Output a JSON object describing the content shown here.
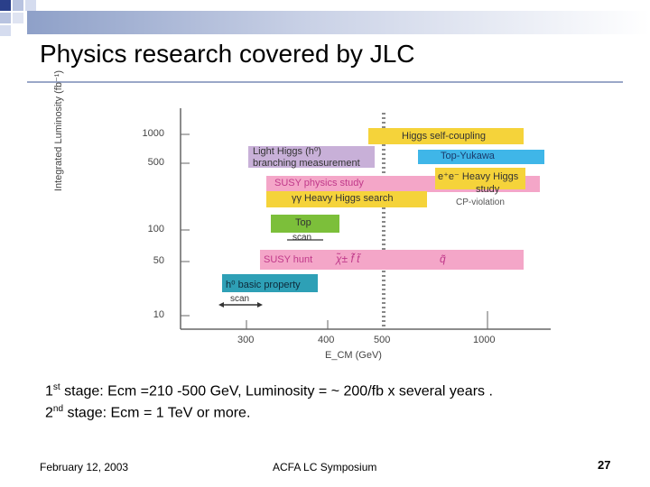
{
  "slide": {
    "title": "Physics research covered by JLC",
    "stage1": {
      "ordinal": "1",
      "suffix": "st",
      "text": "stage: Ecm =210 -500 GeV,   Luminosity = ~ 200/fb x several years ."
    },
    "stage2": {
      "ordinal": "2",
      "suffix": "nd",
      "text": "  stage: Ecm = 1 TeV or more."
    },
    "date": "February 12, 2003",
    "event": "ACFA LC Symposium",
    "page": "27"
  },
  "figure": {
    "y_axis_label": "Integrated Luminosity (fb⁻¹)",
    "x_axis_label": "E_CM (GeV)",
    "y_ticks": [
      "1000",
      "500",
      "100",
      "50",
      "10"
    ],
    "x_ticks": [
      "300",
      "400",
      "500",
      "1000"
    ],
    "boxes": {
      "higgs_self": "Higgs self-coupling",
      "top_yukawa": "Top-Yukawa",
      "light_higgs_1": "Light Higgs (h⁰)",
      "light_higgs_2": "branching measurement",
      "heavy_higgs_1": "e⁺e⁻ Heavy Higgs",
      "heavy_higgs_2": "study",
      "cp_violation": "CP-violation",
      "susy_physics": "SUSY  physics study",
      "gg_heavy": "γγ Heavy Higgs search",
      "top": "Top",
      "top_scan": "scan",
      "susy_hunt": "SUSY hunt",
      "susy_hunt_particles": "χ̃±   f̃    t̃",
      "susy_hunt_q": "q̃",
      "h0_basic": "h⁰ basic property",
      "h0_scan": "scan"
    },
    "colors": {
      "yellow": "#f5d33a",
      "blue": "#3fb6e8",
      "purple": "#c8b0d8",
      "pink": "#f4a6c8",
      "green": "#7cbf3a",
      "teal": "#2ea0b6",
      "axis": "#666666",
      "dotted": "#888888"
    }
  }
}
